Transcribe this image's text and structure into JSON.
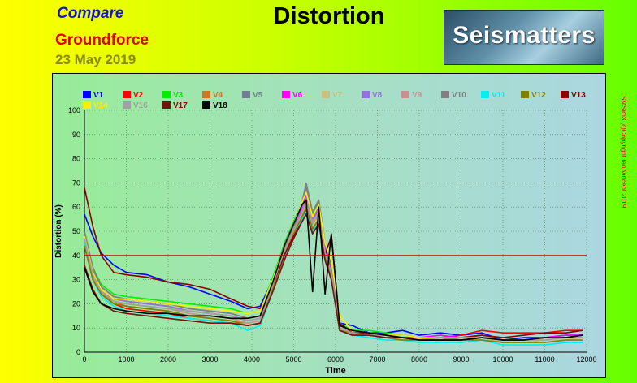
{
  "header": {
    "compare": "Compare",
    "product": "Groundforce",
    "date": "23 May 2019",
    "title": "Distortion",
    "logo": "Seismatters",
    "copyright": "SMSim3 (c)Copyright Ian Vincent 2019"
  },
  "chart_data": {
    "type": "line",
    "xlabel": "Time",
    "ylabel": "Distortion (%)",
    "xlim": [
      0,
      12000
    ],
    "ylim": [
      0,
      100
    ],
    "xticks": [
      0,
      1000,
      2000,
      3000,
      4000,
      5000,
      6000,
      7000,
      8000,
      9000,
      10000,
      11000,
      12000
    ],
    "yticks": [
      0,
      10,
      20,
      30,
      40,
      50,
      60,
      70,
      80,
      90,
      100
    ],
    "grid": true,
    "legend_position": "top-left",
    "reference_line": {
      "y": 40,
      "color": "#cc0000"
    },
    "x": [
      0,
      200,
      400,
      700,
      1000,
      1500,
      2000,
      2500,
      3000,
      3500,
      3900,
      4200,
      4500,
      4800,
      5000,
      5200,
      5300,
      5450,
      5600,
      5750,
      5900,
      6100,
      6400,
      6800,
      7200,
      7600,
      8000,
      8500,
      9000,
      9500,
      10000,
      10500,
      11000,
      11500,
      11900
    ],
    "series": [
      {
        "name": "V1",
        "color": "#0000ff",
        "values": [
          57,
          48,
          41,
          36,
          33,
          32,
          29,
          27,
          24,
          21,
          18,
          19,
          30,
          44,
          52,
          59,
          62,
          55,
          58,
          42,
          36,
          12,
          11,
          8,
          8,
          9,
          7,
          8,
          7,
          8,
          5,
          6,
          6,
          7,
          7
        ]
      },
      {
        "name": "V2",
        "color": "#ff0000",
        "values": [
          44,
          30,
          24,
          20,
          18,
          17,
          16,
          14,
          13,
          12,
          11,
          12,
          26,
          40,
          48,
          55,
          59,
          50,
          54,
          38,
          30,
          9,
          7,
          7,
          6,
          6,
          5,
          6,
          7,
          9,
          8,
          8,
          8,
          9,
          9
        ]
      },
      {
        "name": "V3",
        "color": "#00ee00",
        "values": [
          49,
          35,
          28,
          24,
          23,
          22,
          21,
          20,
          19,
          18,
          16,
          17,
          31,
          46,
          54,
          62,
          66,
          57,
          61,
          44,
          35,
          12,
          9,
          9,
          8,
          7,
          6,
          6,
          5,
          6,
          4,
          4,
          5,
          6,
          6
        ]
      },
      {
        "name": "V4",
        "color": "#cc7722",
        "values": [
          45,
          31,
          24,
          21,
          19,
          18,
          17,
          15,
          14,
          13,
          12,
          13,
          27,
          41,
          49,
          56,
          60,
          51,
          55,
          39,
          31,
          10,
          8,
          7,
          6,
          6,
          5,
          5,
          6,
          6,
          5,
          5,
          6,
          6,
          7
        ]
      },
      {
        "name": "V5",
        "color": "#708090",
        "values": [
          50,
          35,
          27,
          23,
          22,
          21,
          20,
          18,
          17,
          16,
          14,
          15,
          29,
          44,
          52,
          61,
          68,
          58,
          62,
          45,
          35,
          11,
          9,
          8,
          7,
          7,
          6,
          6,
          6,
          7,
          5,
          5,
          6,
          6,
          6
        ]
      },
      {
        "name": "V6",
        "color": "#ff00ff",
        "values": [
          48,
          33,
          26,
          22,
          21,
          20,
          19,
          17,
          16,
          15,
          13,
          14,
          28,
          43,
          51,
          60,
          65,
          56,
          60,
          43,
          34,
          10,
          8,
          8,
          7,
          6,
          6,
          7,
          6,
          6,
          5,
          5,
          6,
          7,
          7
        ]
      },
      {
        "name": "V7",
        "color": "#c8c080",
        "values": [
          46,
          32,
          25,
          21,
          20,
          19,
          18,
          16,
          15,
          14,
          12,
          13,
          27,
          42,
          50,
          57,
          61,
          52,
          56,
          40,
          32,
          10,
          8,
          7,
          6,
          6,
          5,
          5,
          5,
          6,
          4,
          4,
          5,
          5,
          6
        ]
      },
      {
        "name": "V8",
        "color": "#9370db",
        "values": [
          47,
          32,
          25,
          22,
          21,
          20,
          19,
          17,
          16,
          15,
          13,
          14,
          28,
          43,
          51,
          59,
          64,
          55,
          59,
          42,
          33,
          11,
          9,
          8,
          7,
          7,
          6,
          6,
          6,
          6,
          5,
          5,
          5,
          6,
          6
        ]
      },
      {
        "name": "V9",
        "color": "#c89090",
        "values": [
          46,
          31,
          25,
          21,
          20,
          19,
          18,
          16,
          15,
          14,
          12,
          13,
          27,
          42,
          50,
          58,
          63,
          54,
          58,
          41,
          32,
          10,
          8,
          7,
          7,
          6,
          6,
          6,
          6,
          6,
          5,
          5,
          5,
          6,
          6
        ]
      },
      {
        "name": "V10",
        "color": "#808080",
        "values": [
          49,
          34,
          27,
          23,
          22,
          21,
          20,
          18,
          17,
          16,
          14,
          15,
          29,
          44,
          52,
          62,
          70,
          58,
          63,
          45,
          36,
          11,
          9,
          8,
          7,
          7,
          6,
          6,
          6,
          7,
          5,
          5,
          6,
          6,
          6
        ]
      },
      {
        "name": "V11",
        "color": "#00eeee",
        "values": [
          45,
          30,
          23,
          19,
          17,
          16,
          15,
          14,
          13,
          12,
          9,
          11,
          25,
          40,
          48,
          55,
          58,
          50,
          54,
          38,
          30,
          9,
          7,
          6,
          5,
          5,
          4,
          4,
          4,
          5,
          3,
          3,
          3,
          4,
          4
        ]
      },
      {
        "name": "V12",
        "color": "#808000",
        "values": [
          44,
          30,
          24,
          20,
          19,
          18,
          17,
          15,
          14,
          13,
          11,
          12,
          26,
          41,
          49,
          56,
          60,
          51,
          55,
          39,
          31,
          9,
          8,
          7,
          6,
          5,
          5,
          5,
          5,
          5,
          4,
          4,
          4,
          5,
          5
        ]
      },
      {
        "name": "V13",
        "color": "#8b0000",
        "values": [
          68,
          52,
          40,
          33,
          32,
          31,
          29,
          28,
          26,
          22,
          19,
          18,
          28,
          41,
          48,
          54,
          57,
          49,
          53,
          40,
          48,
          12,
          8,
          8,
          7,
          6,
          6,
          6,
          6,
          7,
          6,
          7,
          8,
          8,
          9
        ]
      },
      {
        "name": "V14",
        "color": "#ffee00",
        "values": [
          48,
          33,
          26,
          22,
          22,
          21,
          20,
          19,
          18,
          17,
          16,
          17,
          30,
          45,
          53,
          62,
          66,
          56,
          61,
          45,
          38,
          15,
          9,
          8,
          7,
          7,
          6,
          6,
          6,
          6,
          5,
          5,
          5,
          6,
          6
        ]
      },
      {
        "name": "V16",
        "color": "#a0a0a0",
        "values": [
          47,
          32,
          25,
          21,
          20,
          19,
          18,
          17,
          16,
          15,
          13,
          14,
          28,
          43,
          51,
          58,
          62,
          53,
          57,
          41,
          33,
          10,
          8,
          7,
          7,
          6,
          5,
          6,
          6,
          6,
          5,
          5,
          5,
          6,
          6
        ]
      },
      {
        "name": "V17",
        "color": "#7a1010",
        "values": [
          36,
          26,
          20,
          17,
          16,
          15,
          14,
          13,
          12,
          12,
          11,
          12,
          25,
          39,
          47,
          54,
          57,
          49,
          53,
          38,
          30,
          9,
          7,
          7,
          6,
          6,
          5,
          5,
          5,
          6,
          5,
          5,
          6,
          6,
          7
        ]
      },
      {
        "name": "V18",
        "color": "#000000",
        "values": [
          35,
          25,
          20,
          18,
          17,
          16,
          16,
          15,
          15,
          14,
          14,
          15,
          29,
          45,
          53,
          61,
          63,
          25,
          60,
          24,
          49,
          11,
          9,
          8,
          7,
          6,
          5,
          5,
          5,
          6,
          5,
          5,
          6,
          6,
          7
        ]
      }
    ]
  }
}
